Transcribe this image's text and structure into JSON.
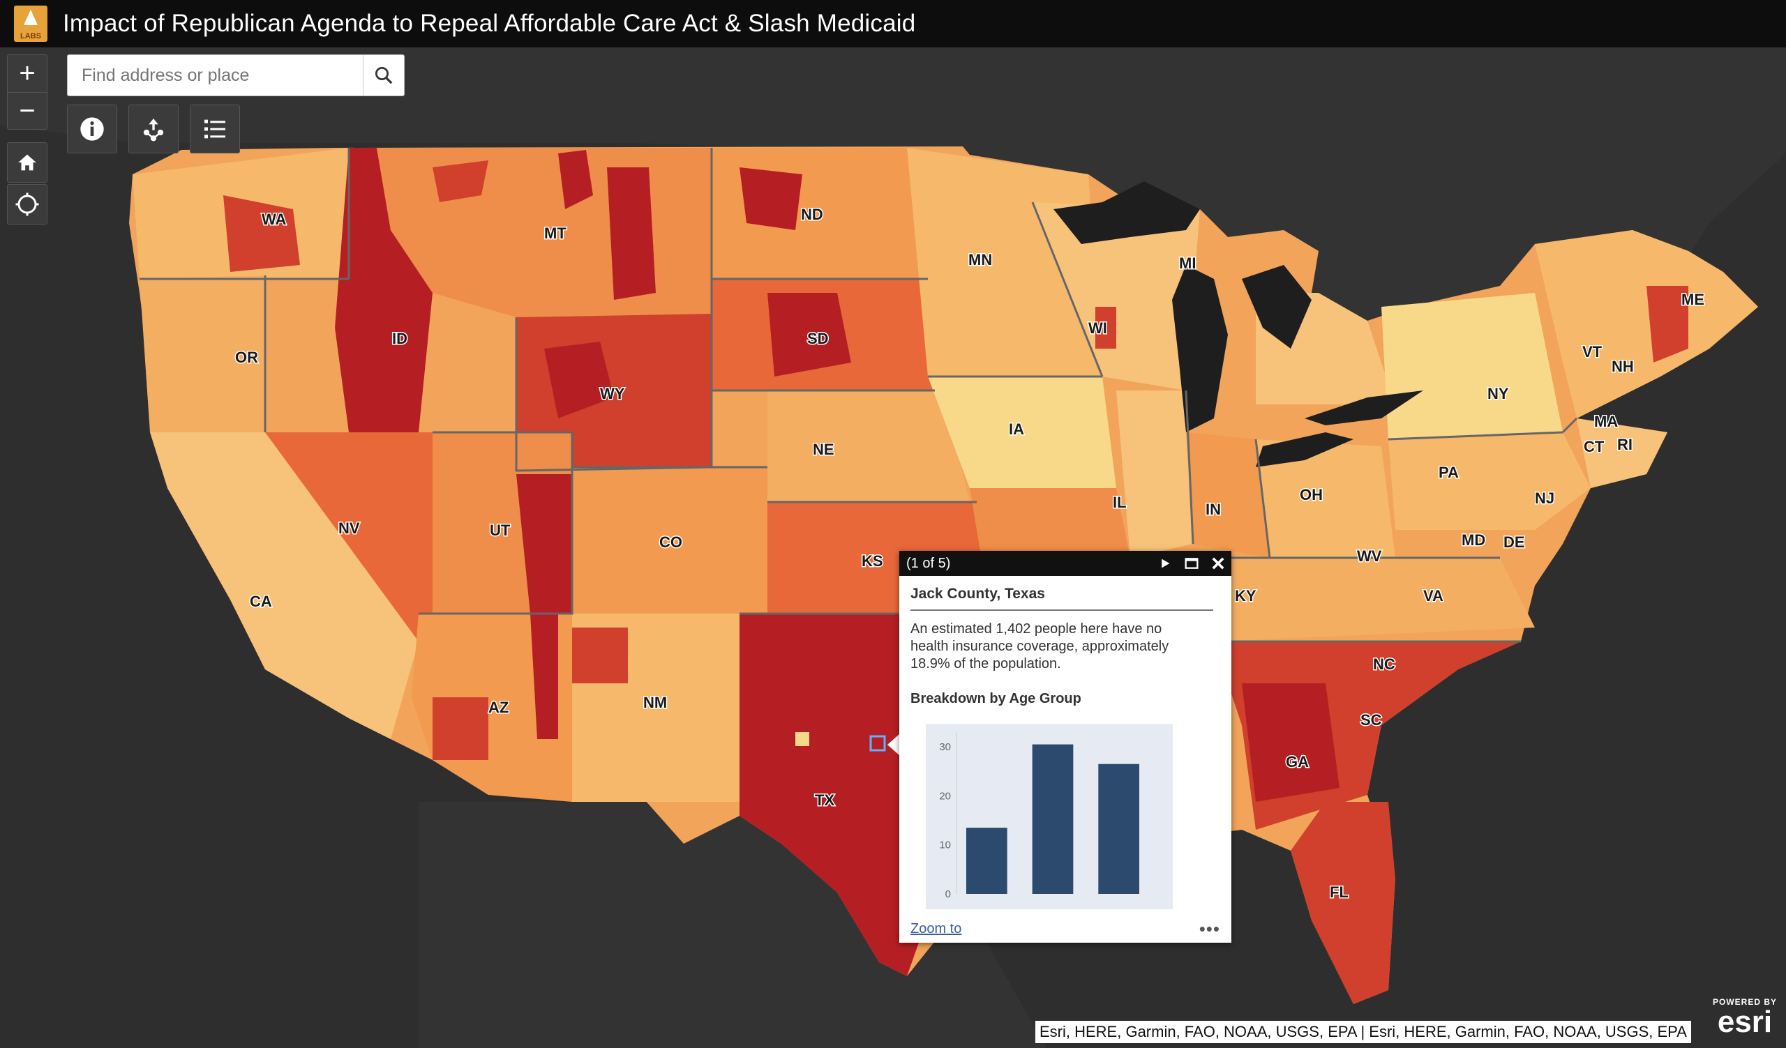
{
  "header": {
    "logo_text": "LABS",
    "title": "Impact of Republican Agenda to Repeal Affordable Care Act & Slash Medicaid"
  },
  "search": {
    "placeholder": "Find address or place"
  },
  "toolbar": {
    "zoom_in": "+",
    "zoom_out": "−",
    "buttons": [
      "info-icon",
      "share-icon",
      "layer-list-icon",
      "home-icon",
      "locate-icon"
    ]
  },
  "map": {
    "state_labels": [
      "WA",
      "OR",
      "CA",
      "ID",
      "NV",
      "MT",
      "WY",
      "UT",
      "AZ",
      "CO",
      "NM",
      "ND",
      "SD",
      "NE",
      "KS",
      "TX",
      "MN",
      "IA",
      "WI",
      "MI",
      "IL",
      "IN",
      "OH",
      "KY",
      "WV",
      "VA",
      "NC",
      "SC",
      "GA",
      "FL",
      "PA",
      "NY",
      "VT",
      "NH",
      "MA",
      "CT",
      "RI",
      "ME",
      "NJ",
      "MD",
      "DE"
    ],
    "legend_colors": [
      "#f8d98a",
      "#f6b86a",
      "#f29a4f",
      "#e8683a",
      "#d0402c",
      "#b51f24"
    ]
  },
  "popup": {
    "count": "(1 of 5)",
    "title": "Jack County, Texas",
    "description": "An estimated 1,402 people here have no health insurance coverage, approximately 18.9% of the population.",
    "subtitle": "Breakdown by Age Group",
    "zoom_to": "Zoom to",
    "more": "•••"
  },
  "chart_data": {
    "type": "bar",
    "categories": [
      "",
      "",
      ""
    ],
    "values": [
      13.5,
      30.5,
      26.5
    ],
    "ylim": [
      0,
      33
    ],
    "yticks": [
      "0",
      "10",
      "20",
      "30"
    ],
    "bar_color": "#2c4a6e"
  },
  "attribution": "Esri, HERE, Garmin, FAO, NOAA, USGS, EPA | Esri, HERE, Garmin, FAO, NOAA, USGS, EPA",
  "esri": {
    "powered_by": "POWERED BY",
    "brand": "esri"
  }
}
